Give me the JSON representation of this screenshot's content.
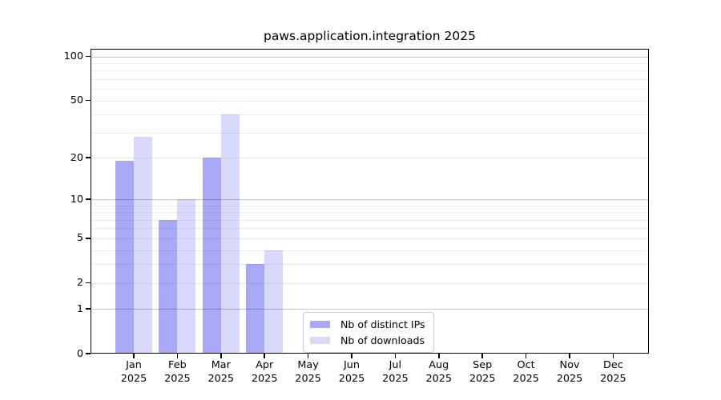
{
  "title": "paws.application.integration 2025",
  "chart_data": {
    "type": "bar",
    "title": "paws.application.integration 2025",
    "x_categories": [
      "Jan",
      "Feb",
      "Mar",
      "Apr",
      "May",
      "Jun",
      "Jul",
      "Aug",
      "Sep",
      "Oct",
      "Nov",
      "Dec"
    ],
    "x_year": "2025",
    "series": [
      {
        "name": "Nb of distinct IPs",
        "color": "#a8a8f6",
        "values": [
          19,
          7,
          20,
          3,
          null,
          null,
          null,
          null,
          null,
          null,
          null,
          null
        ]
      },
      {
        "name": "Nb of downloads",
        "color": "#d8d8fa",
        "values": [
          28,
          10,
          40,
          4,
          null,
          null,
          null,
          null,
          null,
          null,
          null,
          null
        ]
      }
    ],
    "y_axis": {
      "scale": "log1p",
      "tick_labels": [
        0,
        1,
        2,
        5,
        10,
        20,
        50,
        100
      ],
      "major_gridlines": [
        1,
        10,
        100
      ],
      "minor_gridlines": [
        2,
        3,
        4,
        5,
        6,
        7,
        8,
        9,
        20,
        30,
        40,
        50,
        60,
        70,
        80,
        90
      ],
      "top_value": 113
    },
    "legend_position": "lower center",
    "grid": true,
    "grid_above_bars": true
  }
}
